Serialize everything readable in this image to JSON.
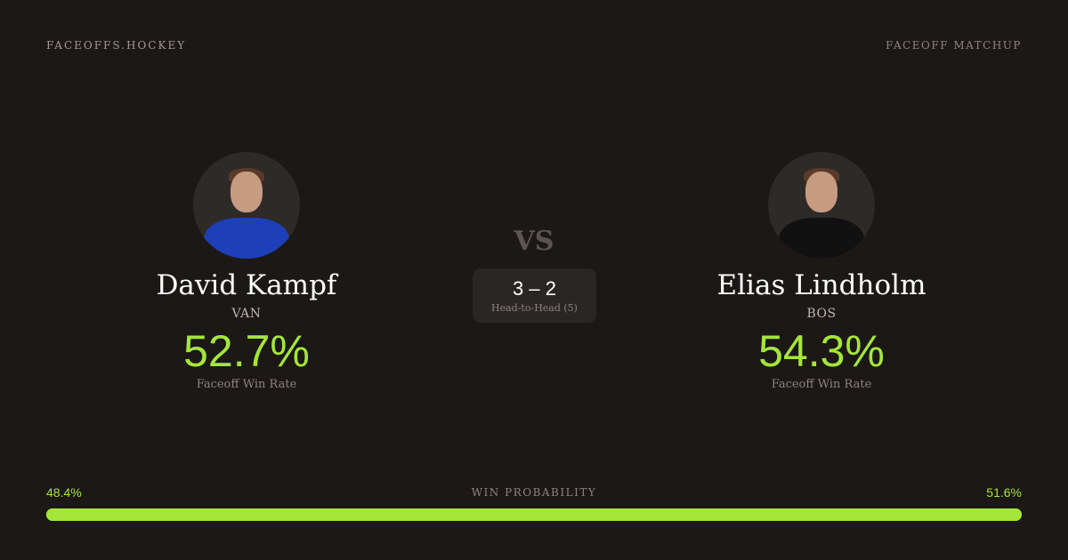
{
  "header": {
    "brand": "FACEOFFS.HOCKEY",
    "page_type": "FACEOFF MATCHUP"
  },
  "players": [
    {
      "name": "David Kampf",
      "team": "VAN",
      "rate": "52.7%",
      "rate_label": "Faceoff Win Rate",
      "jersey_color": "#1d3fb8"
    },
    {
      "name": "Elias Lindholm",
      "team": "BOS",
      "rate": "54.3%",
      "rate_label": "Faceoff Win Rate",
      "jersey_color": "#111111"
    }
  ],
  "vs": "VS",
  "head_to_head": {
    "score": "3 – 2",
    "label": "Head-to-Head (5)"
  },
  "win_probability": {
    "title": "WIN PROBABILITY",
    "left": "48.4%",
    "right": "51.6%",
    "left_value": 48.4,
    "right_value": 51.6,
    "color": "#a5e63a"
  }
}
